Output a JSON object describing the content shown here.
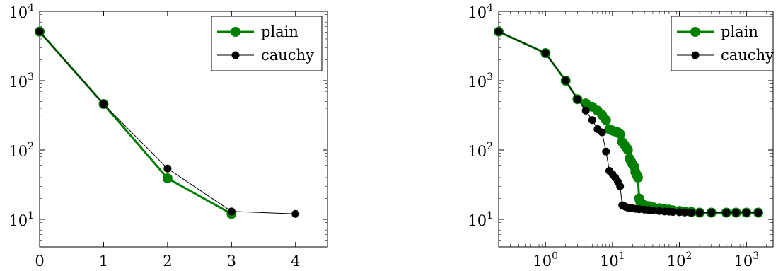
{
  "chart_data": [
    {
      "type": "line",
      "x_scale": "linear",
      "y_scale": "log",
      "xlim": [
        0,
        4.5
      ],
      "ylim": [
        4,
        10000
      ],
      "grid": false,
      "legend_position": "top-right",
      "x_ticks": [
        {
          "value": 0,
          "label": "0"
        },
        {
          "value": 1,
          "label": "1"
        },
        {
          "value": 2,
          "label": "2"
        },
        {
          "value": 3,
          "label": "3"
        },
        {
          "value": 4,
          "label": "4"
        }
      ],
      "y_ticks": [
        {
          "value": 10,
          "base": "10",
          "exp": "1"
        },
        {
          "value": 100,
          "base": "10",
          "exp": "2"
        },
        {
          "value": 1000,
          "base": "10",
          "exp": "3"
        },
        {
          "value": 10000,
          "base": "10",
          "exp": "4"
        }
      ],
      "series": [
        {
          "name": "plain",
          "color": "#008000",
          "style": "thick",
          "x": [
            0,
            1,
            2,
            3
          ],
          "y": [
            5100,
            460,
            39,
            12
          ]
        },
        {
          "name": "cauchy",
          "color": "#000000",
          "style": "thin",
          "x": [
            0,
            1,
            2,
            3,
            4
          ],
          "y": [
            5100,
            460,
            54,
            13,
            12
          ]
        }
      ]
    },
    {
      "type": "line",
      "x_scale": "log",
      "y_scale": "log",
      "xlim": [
        0.2,
        2500
      ],
      "ylim": [
        4,
        10000
      ],
      "grid": false,
      "legend_position": "top-right",
      "x_ticks": [
        {
          "value": 1,
          "base": "10",
          "exp": "0"
        },
        {
          "value": 10,
          "base": "10",
          "exp": "1"
        },
        {
          "value": 100,
          "base": "10",
          "exp": "2"
        },
        {
          "value": 1000,
          "base": "10",
          "exp": "3"
        }
      ],
      "y_ticks": [
        {
          "value": 10,
          "base": "10",
          "exp": "1"
        },
        {
          "value": 100,
          "base": "10",
          "exp": "2"
        },
        {
          "value": 1000,
          "base": "10",
          "exp": "3"
        },
        {
          "value": 10000,
          "base": "10",
          "exp": "4"
        }
      ],
      "series": [
        {
          "name": "plain",
          "color": "#008000",
          "style": "thick",
          "x": [
            0.2,
            1,
            2,
            3,
            4,
            5,
            6,
            7,
            8,
            9,
            10,
            11,
            12,
            13,
            14,
            15,
            16,
            17,
            18,
            19,
            20,
            21,
            22,
            23,
            24,
            25,
            26,
            27,
            28,
            30,
            35,
            40,
            50,
            60,
            70,
            80,
            100,
            120,
            150,
            200,
            300,
            500,
            700,
            1000,
            1500
          ],
          "y": [
            5100,
            2500,
            1000,
            540,
            470,
            420,
            370,
            320,
            270,
            200,
            190,
            185,
            180,
            170,
            130,
            120,
            110,
            100,
            75,
            68,
            62,
            58,
            48,
            44,
            40,
            20,
            18,
            17,
            16.5,
            16,
            15.5,
            15,
            14.5,
            14,
            13.8,
            13.5,
            13.2,
            13,
            12.8,
            12.5,
            12.5,
            12.5,
            12.5,
            12.5,
            12.5
          ]
        },
        {
          "name": "cauchy",
          "color": "#000000",
          "style": "thin",
          "x": [
            0.2,
            1,
            2,
            3,
            4,
            5,
            6,
            7,
            8,
            9,
            10,
            11,
            12,
            13,
            14,
            15,
            16,
            17,
            18,
            20,
            22,
            25,
            30,
            35,
            40,
            50,
            60,
            70,
            80,
            100,
            120,
            150,
            200,
            300,
            500,
            700,
            1000,
            1500
          ],
          "y": [
            5100,
            2500,
            1000,
            540,
            370,
            270,
            200,
            180,
            95,
            50,
            45,
            40,
            35,
            30,
            16,
            15.5,
            15,
            14.8,
            14.6,
            14.4,
            14.2,
            14,
            13.8,
            13.6,
            13.4,
            13.2,
            13,
            12.9,
            12.8,
            12.7,
            12.6,
            12.5,
            12.5,
            12.5,
            12.5,
            12.5,
            12.5,
            12.5
          ]
        }
      ]
    }
  ]
}
